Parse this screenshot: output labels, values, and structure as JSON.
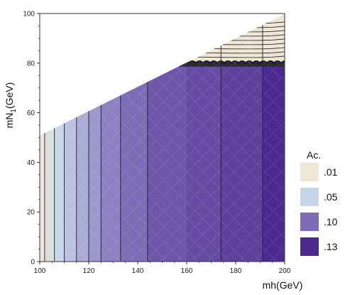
{
  "chart_data": {
    "type": "heatmap",
    "title": "",
    "xlabel": "mh(GeV)",
    "ylabel_main": "mN",
    "ylabel_sub": "1",
    "ylabel_unit": "(GeV)",
    "xlim": [
      100,
      200
    ],
    "ylim": [
      0,
      100
    ],
    "xticks": [
      100,
      120,
      140,
      160,
      180,
      200
    ],
    "yticks": [
      0,
      20,
      40,
      60,
      80,
      100
    ],
    "grid": false,
    "allowed_region_boundary": {
      "line_from": [
        100,
        50
      ],
      "line_to": [
        200,
        100
      ],
      "description_free": ""
    },
    "color_bands": [
      {
        "x_from": 100,
        "x_to": 102,
        "level": 0.01
      },
      {
        "x_from": 102,
        "x_to": 106,
        "level": 0.03
      },
      {
        "x_from": 106,
        "x_to": 110,
        "level": 0.05
      },
      {
        "x_from": 110,
        "x_to": 115,
        "level": 0.06
      },
      {
        "x_from": 115,
        "x_to": 120,
        "level": 0.07
      },
      {
        "x_from": 120,
        "x_to": 125,
        "level": 0.08
      },
      {
        "x_from": 125,
        "x_to": 133,
        "level": 0.09
      },
      {
        "x_from": 133,
        "x_to": 144,
        "level": 0.1
      },
      {
        "x_from": 144,
        "x_to": 160,
        "level": 0.11
      },
      {
        "x_from": 160,
        "x_to": 174,
        "level": 0.115
      },
      {
        "x_from": 174,
        "x_to": 191,
        "level": 0.12
      },
      {
        "x_from": 191,
        "x_to": 200,
        "level": 0.13
      }
    ],
    "contour_lines_x": [
      102,
      106,
      110,
      115,
      120,
      125,
      133,
      144,
      174,
      191
    ],
    "upper_region": {
      "y_from": 80,
      "level": 0.01
    },
    "legend": {
      "title": "Ac.",
      "placement": "right",
      "entries": [
        {
          "label": ".01",
          "color": "#efe6d6"
        },
        {
          "label": ".05",
          "color": "#c7d7ea"
        },
        {
          "label": ".10",
          "color": "#7f6cb8"
        },
        {
          "label": ".13",
          "color": "#4d2a8f"
        }
      ]
    }
  }
}
